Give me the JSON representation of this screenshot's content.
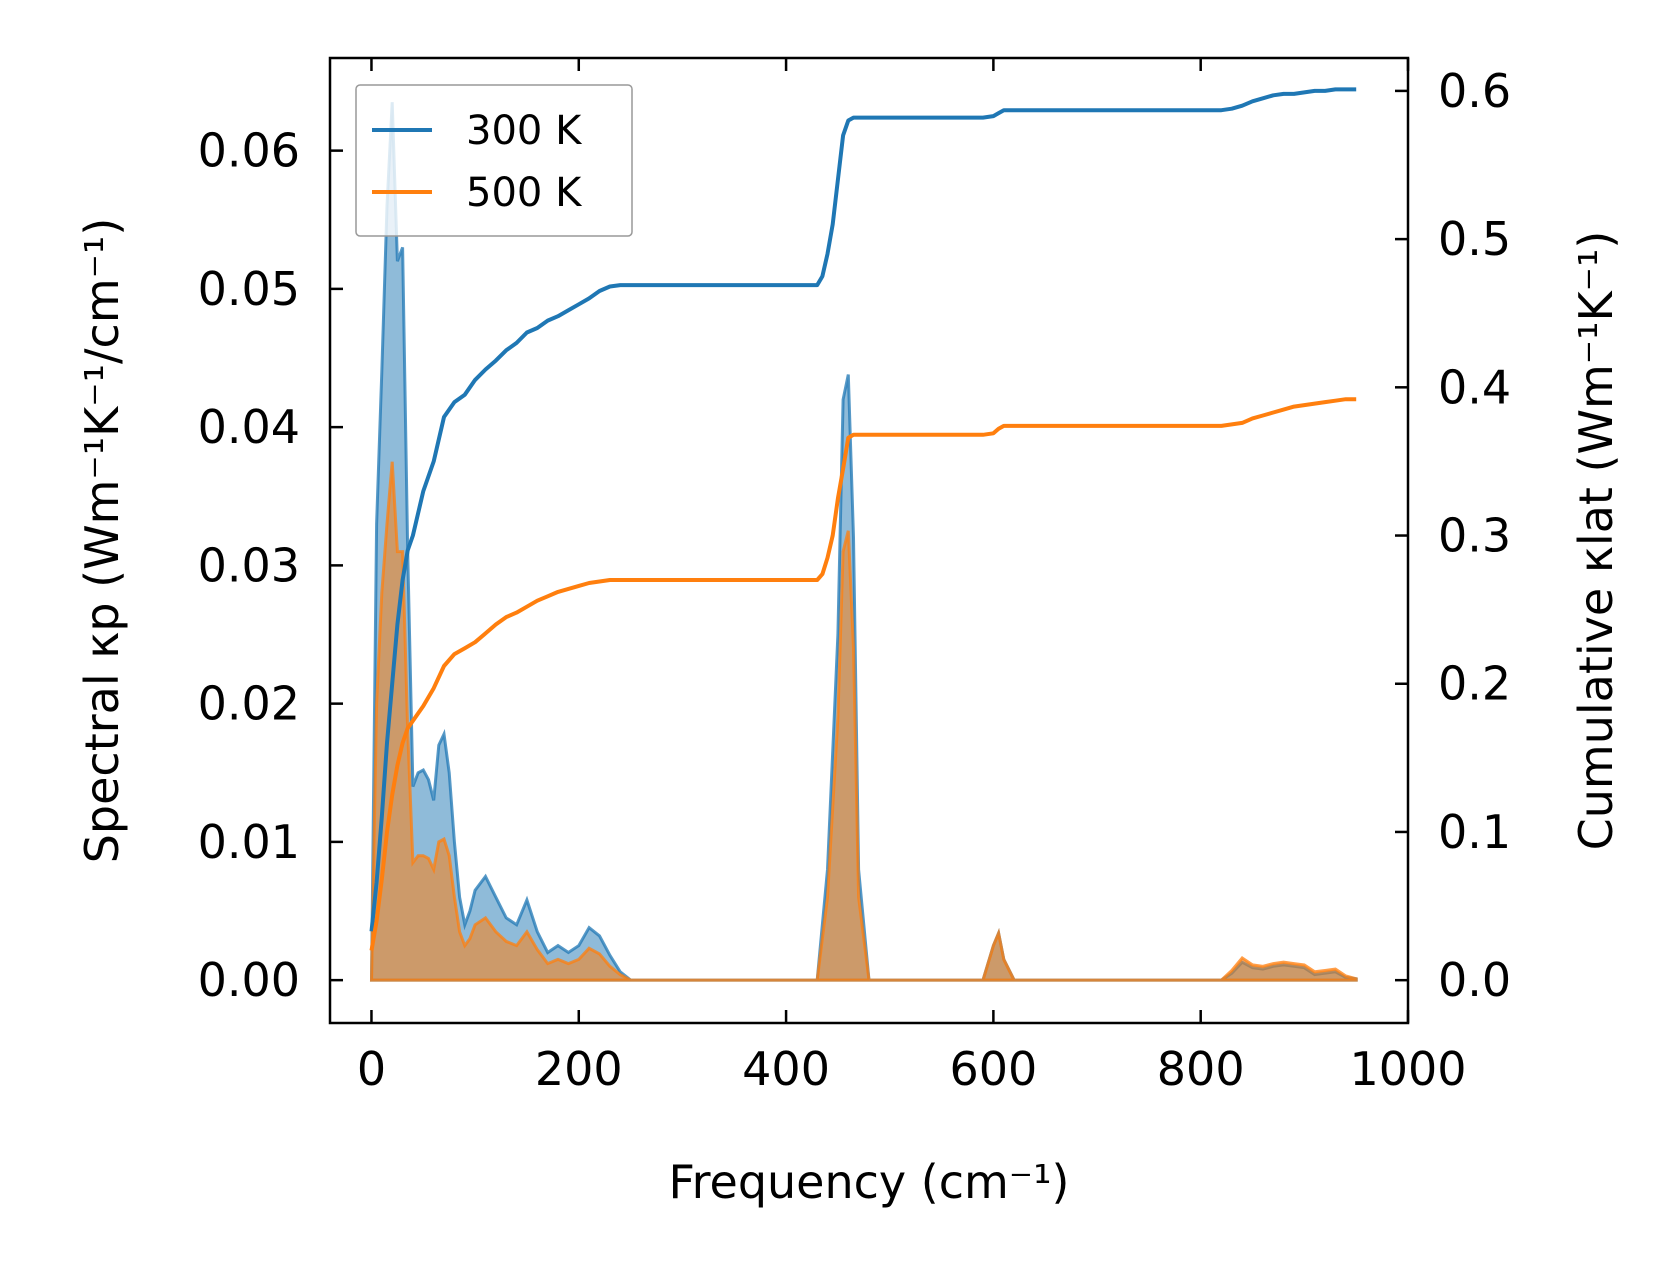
{
  "chart_data": {
    "type": "line",
    "xlabel": "Frequency (cm⁻¹)",
    "ylabel_left": "Spectral κp (Wm⁻¹K⁻¹/cm⁻¹)",
    "ylabel_right": "Cumulative κlat (Wm⁻¹K⁻¹)",
    "xlim": [
      -40,
      1000
    ],
    "ylim_left": [
      -0.0031,
      0.0667
    ],
    "ylim_right": [
      -0.0289,
      0.6222
    ],
    "xticks": [
      0,
      200,
      400,
      600,
      800,
      1000
    ],
    "xtick_labels": [
      "0",
      "200",
      "400",
      "600",
      "800",
      "1000"
    ],
    "yticks_left": [
      0.0,
      0.01,
      0.02,
      0.03,
      0.04,
      0.05,
      0.06
    ],
    "ytick_labels_left": [
      "0.00",
      "0.01",
      "0.02",
      "0.03",
      "0.04",
      "0.05",
      "0.06"
    ],
    "yticks_right": [
      0.0,
      0.1,
      0.2,
      0.3,
      0.4,
      0.5,
      0.6
    ],
    "ytick_labels_right": [
      "0.0",
      "0.1",
      "0.2",
      "0.3",
      "0.4",
      "0.5",
      "0.6"
    ],
    "grid": false,
    "legend_position": "upper left",
    "colors": {
      "s300": "#1f77b4",
      "s500": "#ff7f0e",
      "overlap": "#c49a7a",
      "axis": "#000000"
    },
    "series": [
      {
        "name": "300 K",
        "color": "#1f77b4",
        "spectral_x": [
          0,
          5,
          10,
          15,
          20,
          25,
          30,
          35,
          40,
          45,
          50,
          55,
          60,
          65,
          70,
          75,
          80,
          85,
          90,
          95,
          100,
          110,
          120,
          130,
          140,
          150,
          160,
          170,
          180,
          190,
          200,
          210,
          220,
          230,
          240,
          250,
          430,
          440,
          450,
          455,
          460,
          465,
          470,
          480,
          590,
          600,
          605,
          610,
          620,
          820,
          830,
          840,
          850,
          860,
          870,
          880,
          890,
          900,
          910,
          920,
          930,
          940,
          950
        ],
        "spectral_y": [
          0.0,
          0.033,
          0.044,
          0.056,
          0.0635,
          0.052,
          0.053,
          0.031,
          0.014,
          0.015,
          0.0152,
          0.0145,
          0.013,
          0.017,
          0.0178,
          0.015,
          0.01,
          0.006,
          0.004,
          0.005,
          0.0065,
          0.0075,
          0.006,
          0.0045,
          0.004,
          0.0058,
          0.0035,
          0.002,
          0.0025,
          0.002,
          0.0025,
          0.0038,
          0.0032,
          0.0018,
          0.0006,
          0.0,
          0.0,
          0.008,
          0.025,
          0.042,
          0.0438,
          0.032,
          0.008,
          0.0,
          0.0,
          0.0025,
          0.0034,
          0.0015,
          0.0,
          0.0,
          0.0005,
          0.0013,
          0.0009,
          0.0008,
          0.001,
          0.0011,
          0.001,
          0.0009,
          0.0004,
          0.0005,
          0.0006,
          0.0002,
          0.0001
        ],
        "cumulative_x": [
          0,
          5,
          10,
          15,
          20,
          25,
          30,
          35,
          40,
          50,
          60,
          70,
          80,
          90,
          100,
          110,
          120,
          130,
          140,
          150,
          160,
          170,
          180,
          190,
          200,
          210,
          220,
          230,
          240,
          250,
          430,
          435,
          440,
          445,
          450,
          455,
          460,
          465,
          470,
          480,
          590,
          600,
          605,
          610,
          620,
          800,
          820,
          830,
          840,
          850,
          860,
          870,
          880,
          890,
          900,
          910,
          920,
          930,
          940,
          950
        ],
        "cumulative_y": [
          0.033,
          0.066,
          0.11,
          0.16,
          0.2,
          0.24,
          0.27,
          0.29,
          0.3,
          0.33,
          0.35,
          0.38,
          0.39,
          0.395,
          0.405,
          0.412,
          0.418,
          0.425,
          0.43,
          0.437,
          0.44,
          0.445,
          0.448,
          0.452,
          0.456,
          0.46,
          0.465,
          0.468,
          0.469,
          0.469,
          0.469,
          0.475,
          0.49,
          0.51,
          0.54,
          0.57,
          0.58,
          0.582,
          0.582,
          0.582,
          0.582,
          0.583,
          0.585,
          0.587,
          0.587,
          0.587,
          0.587,
          0.588,
          0.59,
          0.593,
          0.595,
          0.597,
          0.598,
          0.598,
          0.599,
          0.6,
          0.6,
          0.601,
          0.601,
          0.601
        ]
      },
      {
        "name": "500 K",
        "color": "#ff7f0e",
        "spectral_x": [
          0,
          5,
          10,
          15,
          20,
          25,
          30,
          35,
          40,
          45,
          50,
          55,
          60,
          65,
          70,
          75,
          80,
          85,
          90,
          95,
          100,
          110,
          120,
          130,
          140,
          150,
          160,
          170,
          180,
          190,
          200,
          210,
          220,
          230,
          240,
          250,
          430,
          440,
          450,
          455,
          460,
          465,
          470,
          480,
          590,
          600,
          605,
          610,
          620,
          820,
          830,
          840,
          850,
          860,
          870,
          880,
          890,
          900,
          910,
          920,
          930,
          940,
          950
        ],
        "spectral_y": [
          0.0,
          0.02,
          0.028,
          0.033,
          0.0375,
          0.031,
          0.031,
          0.018,
          0.0085,
          0.009,
          0.009,
          0.0088,
          0.008,
          0.01,
          0.0102,
          0.009,
          0.006,
          0.0035,
          0.0025,
          0.003,
          0.004,
          0.0045,
          0.0035,
          0.0028,
          0.0025,
          0.0035,
          0.0022,
          0.0012,
          0.0015,
          0.0012,
          0.0015,
          0.0023,
          0.0019,
          0.001,
          0.0004,
          0.0,
          0.0,
          0.006,
          0.019,
          0.031,
          0.0325,
          0.024,
          0.006,
          0.0,
          0.0,
          0.0025,
          0.0034,
          0.0015,
          0.0,
          0.0,
          0.0007,
          0.0016,
          0.0011,
          0.001,
          0.0012,
          0.0013,
          0.0012,
          0.0011,
          0.0006,
          0.0007,
          0.0008,
          0.0003,
          0.0001
        ],
        "cumulative_x": [
          0,
          5,
          10,
          15,
          20,
          25,
          30,
          35,
          40,
          50,
          60,
          70,
          80,
          90,
          100,
          110,
          120,
          130,
          140,
          150,
          160,
          170,
          180,
          190,
          200,
          210,
          220,
          230,
          240,
          250,
          430,
          435,
          440,
          445,
          450,
          455,
          460,
          465,
          470,
          480,
          590,
          600,
          605,
          610,
          620,
          800,
          820,
          830,
          840,
          850,
          860,
          870,
          880,
          890,
          900,
          910,
          920,
          930,
          940,
          950
        ],
        "cumulative_y": [
          0.02,
          0.04,
          0.068,
          0.1,
          0.125,
          0.145,
          0.16,
          0.17,
          0.175,
          0.185,
          0.197,
          0.212,
          0.22,
          0.224,
          0.228,
          0.234,
          0.24,
          0.245,
          0.248,
          0.252,
          0.256,
          0.259,
          0.262,
          0.264,
          0.266,
          0.268,
          0.269,
          0.27,
          0.27,
          0.27,
          0.27,
          0.274,
          0.285,
          0.3,
          0.325,
          0.345,
          0.366,
          0.368,
          0.368,
          0.368,
          0.368,
          0.369,
          0.372,
          0.374,
          0.374,
          0.374,
          0.374,
          0.375,
          0.376,
          0.379,
          0.381,
          0.383,
          0.385,
          0.387,
          0.388,
          0.389,
          0.39,
          0.391,
          0.392,
          0.392
        ]
      }
    ]
  }
}
